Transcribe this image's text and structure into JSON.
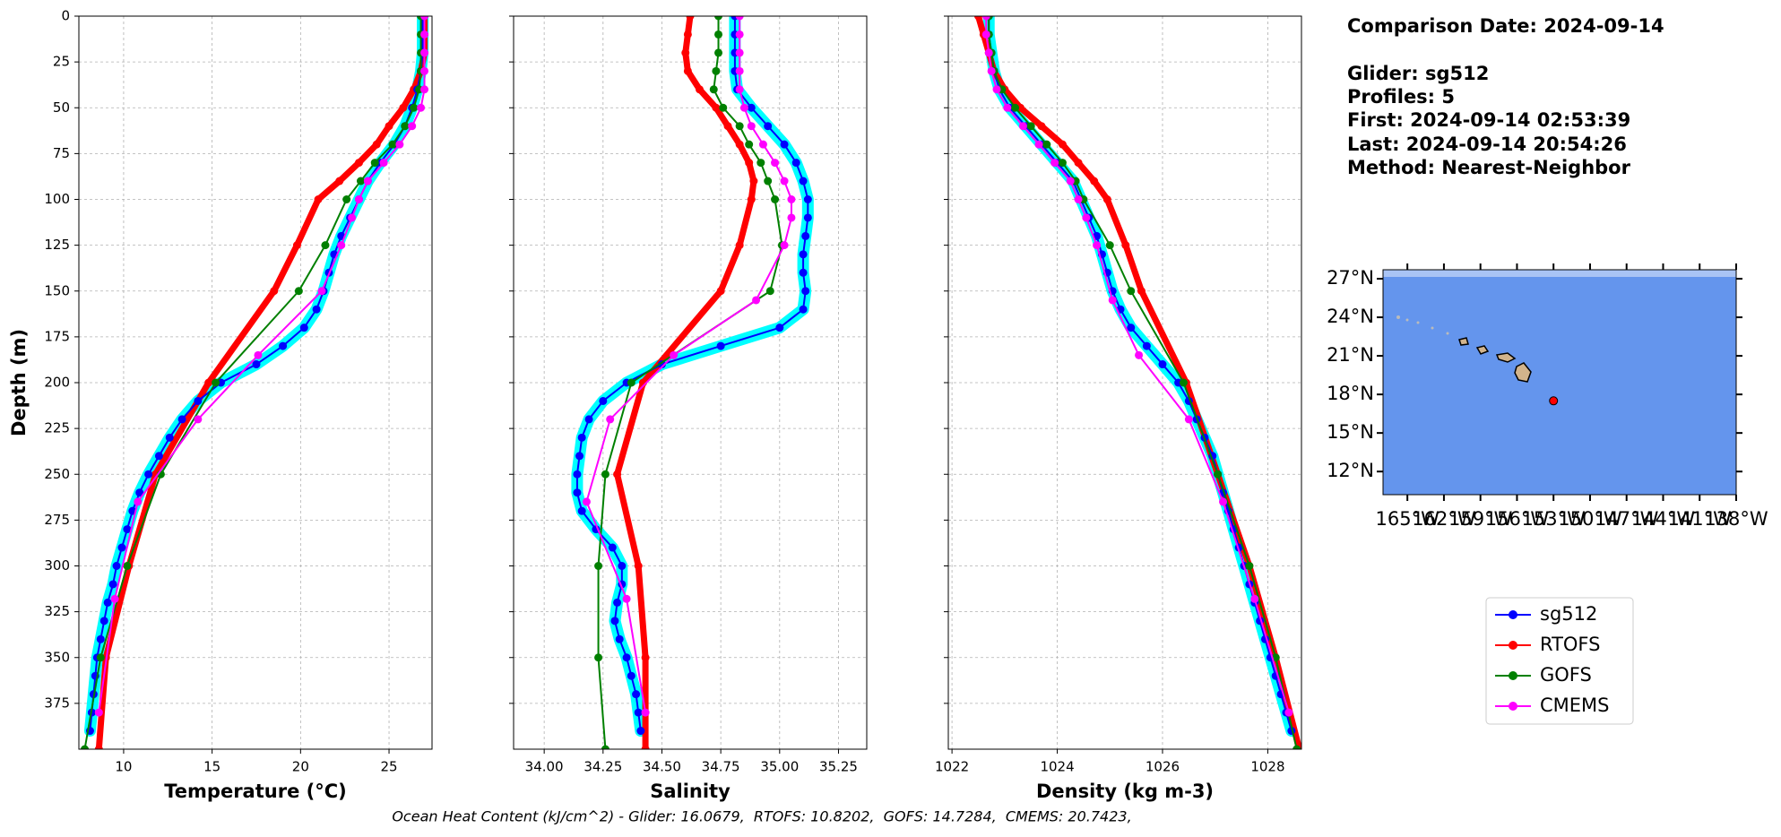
{
  "chart_data": [
    {
      "type": "line",
      "xlabel": "Temperature (°C)",
      "ylabel": "Depth (m)",
      "xlim": [
        7.47,
        27.43
      ],
      "xticks": [
        10,
        15,
        20,
        25
      ],
      "ylim": [
        0,
        400
      ],
      "y_inverted": true,
      "yticks": [
        0,
        25,
        50,
        75,
        100,
        125,
        150,
        175,
        200,
        225,
        250,
        275,
        300,
        325,
        350,
        375
      ],
      "grid": true,
      "series": [
        {
          "name": "sg512",
          "color": "#0000ff",
          "halo_color": "#00ffff",
          "linewidth": 2,
          "depth": [
            0,
            10,
            20,
            30,
            40,
            50,
            60,
            70,
            80,
            90,
            100,
            110,
            120,
            130,
            140,
            150,
            160,
            170,
            180,
            190,
            200,
            210,
            220,
            230,
            240,
            250,
            260,
            270,
            280,
            290,
            300,
            310,
            320,
            330,
            340,
            350,
            360,
            370,
            380,
            390
          ],
          "values": [
            26.9,
            26.9,
            26.9,
            26.8,
            26.6,
            26.3,
            25.9,
            25.3,
            24.5,
            23.8,
            23.3,
            22.8,
            22.3,
            21.9,
            21.6,
            21.3,
            20.9,
            20.2,
            19.0,
            17.5,
            15.5,
            14.2,
            13.3,
            12.6,
            12.0,
            11.4,
            10.9,
            10.5,
            10.2,
            9.9,
            9.6,
            9.4,
            9.1,
            8.9,
            8.7,
            8.5,
            8.4,
            8.3,
            8.2,
            8.1
          ]
        },
        {
          "name": "RTOFS",
          "color": "#ff0000",
          "linewidth": 7,
          "depth": [
            0,
            10,
            20,
            30,
            40,
            50,
            60,
            70,
            80,
            90,
            100,
            125,
            150,
            200,
            250,
            300,
            350,
            400
          ],
          "values": [
            27,
            27,
            27,
            26.8,
            26.4,
            25.8,
            25,
            24.3,
            23.3,
            22.2,
            21.0,
            19.8,
            18.5,
            14.8,
            11.8,
            10.3,
            9.0,
            8.6
          ]
        },
        {
          "name": "GOFS",
          "color": "#008000",
          "linewidth": 2,
          "depth": [
            0,
            10,
            20,
            30,
            40,
            50,
            60,
            70,
            80,
            90,
            100,
            125,
            150,
            200,
            250,
            300,
            350,
            400
          ],
          "values": [
            26.8,
            26.8,
            26.8,
            26.8,
            26.7,
            26.4,
            25.9,
            25.2,
            24.2,
            23.4,
            22.6,
            21.4,
            19.9,
            15.2,
            12.1,
            10.2,
            8.7,
            7.8
          ]
        },
        {
          "name": "CMEMS",
          "color": "#ff00ff",
          "linewidth": 2,
          "depth": [
            0,
            10,
            20,
            30,
            40,
            50,
            60,
            70,
            80,
            90,
            100,
            110,
            125,
            150,
            185,
            220,
            265,
            318,
            380
          ],
          "values": [
            27,
            27,
            27,
            27,
            27,
            26.8,
            26.3,
            25.6,
            24.7,
            23.8,
            23.3,
            22.9,
            22.3,
            21.2,
            17.6,
            14.2,
            10.8,
            9.5,
            8.6
          ]
        }
      ]
    },
    {
      "type": "line",
      "xlabel": "Salinity",
      "xlim": [
        33.87,
        35.37
      ],
      "xticks": [
        {
          "value": 34,
          "label": "34.00"
        },
        34.25,
        {
          "value": 34.5,
          "label": "34.50"
        },
        34.75,
        {
          "value": 35,
          "label": "35.00"
        },
        35.25
      ],
      "ylim": [
        0,
        400
      ],
      "y_inverted": true,
      "grid": true,
      "series": [
        {
          "name": "sg512",
          "color": "#0000ff",
          "halo_color": "#00ffff",
          "linewidth": 2,
          "depth": [
            0,
            10,
            20,
            30,
            40,
            50,
            60,
            70,
            80,
            90,
            100,
            110,
            120,
            130,
            140,
            150,
            160,
            170,
            180,
            190,
            200,
            210,
            220,
            230,
            240,
            250,
            260,
            270,
            280,
            290,
            300,
            310,
            320,
            330,
            340,
            350,
            360,
            370,
            380,
            390
          ],
          "values": [
            34.81,
            34.81,
            34.81,
            34.81,
            34.82,
            34.88,
            34.95,
            35.02,
            35.07,
            35.1,
            35.12,
            35.12,
            35.11,
            35.1,
            35.1,
            35.11,
            35.1,
            35.0,
            34.75,
            34.5,
            34.35,
            34.25,
            34.19,
            34.16,
            34.15,
            34.14,
            34.14,
            34.16,
            34.22,
            34.29,
            34.33,
            34.33,
            34.31,
            34.3,
            34.32,
            34.35,
            34.37,
            34.39,
            34.4,
            34.41
          ]
        },
        {
          "name": "RTOFS",
          "color": "#ff0000",
          "linewidth": 7,
          "depth": [
            0,
            10,
            20,
            30,
            40,
            50,
            60,
            70,
            80,
            90,
            100,
            125,
            150,
            200,
            250,
            300,
            350,
            400
          ],
          "values": [
            34.62,
            34.61,
            34.6,
            34.61,
            34.66,
            34.73,
            34.78,
            34.83,
            34.87,
            34.89,
            34.88,
            34.83,
            34.75,
            34.42,
            34.31,
            34.4,
            34.43,
            34.43
          ]
        },
        {
          "name": "GOFS",
          "color": "#008000",
          "linewidth": 2,
          "depth": [
            0,
            10,
            20,
            30,
            40,
            50,
            60,
            70,
            80,
            90,
            100,
            125,
            150,
            200,
            250,
            300,
            350,
            400
          ],
          "values": [
            34.74,
            34.74,
            34.74,
            34.73,
            34.72,
            34.76,
            34.83,
            34.87,
            34.92,
            34.95,
            34.98,
            35.01,
            34.96,
            34.37,
            34.26,
            34.23,
            34.23,
            34.26
          ]
        },
        {
          "name": "CMEMS",
          "color": "#ff00ff",
          "linewidth": 2,
          "depth": [
            0,
            10,
            20,
            30,
            40,
            50,
            60,
            70,
            80,
            90,
            100,
            110,
            125,
            155,
            185,
            220,
            265,
            318,
            380
          ],
          "values": [
            34.83,
            34.83,
            34.83,
            34.83,
            34.83,
            34.85,
            34.88,
            34.93,
            34.98,
            35.02,
            35.05,
            35.05,
            35.02,
            34.9,
            34.55,
            34.28,
            34.18,
            34.35,
            34.43
          ]
        }
      ]
    },
    {
      "type": "line",
      "xlabel": "Density (kg m-3)",
      "xlim": [
        1021.93,
        1028.64
      ],
      "xticks": [
        1022,
        1024,
        1026,
        1028
      ],
      "ylim": [
        0,
        400
      ],
      "y_inverted": true,
      "grid": true,
      "series": [
        {
          "name": "sg512",
          "color": "#0000ff",
          "halo_color": "#00ffff",
          "linewidth": 2,
          "depth": [
            0,
            10,
            20,
            30,
            40,
            50,
            60,
            70,
            80,
            90,
            100,
            110,
            120,
            130,
            140,
            150,
            160,
            170,
            180,
            190,
            200,
            210,
            220,
            230,
            240,
            250,
            260,
            270,
            280,
            290,
            300,
            310,
            320,
            330,
            340,
            350,
            360,
            370,
            380,
            390
          ],
          "values": [
            1022.7,
            1022.7,
            1022.75,
            1022.8,
            1022.9,
            1023.1,
            1023.4,
            1023.7,
            1024.0,
            1024.3,
            1024.45,
            1024.6,
            1024.75,
            1024.85,
            1024.95,
            1025.05,
            1025.2,
            1025.4,
            1025.7,
            1026.0,
            1026.3,
            1026.5,
            1026.65,
            1026.8,
            1026.95,
            1027.05,
            1027.15,
            1027.25,
            1027.35,
            1027.45,
            1027.55,
            1027.65,
            1027.75,
            1027.85,
            1027.95,
            1028.05,
            1028.15,
            1028.25,
            1028.35,
            1028.45
          ]
        },
        {
          "name": "RTOFS",
          "color": "#ff0000",
          "linewidth": 7,
          "depth": [
            0,
            10,
            20,
            30,
            40,
            50,
            60,
            70,
            80,
            90,
            100,
            125,
            150,
            200,
            250,
            300,
            350,
            400
          ],
          "values": [
            1022.5,
            1022.6,
            1022.7,
            1022.8,
            1023.0,
            1023.3,
            1023.7,
            1024.1,
            1024.4,
            1024.7,
            1024.95,
            1025.3,
            1025.6,
            1026.45,
            1027.05,
            1027.65,
            1028.15,
            1028.6
          ]
        },
        {
          "name": "GOFS",
          "color": "#008000",
          "linewidth": 2,
          "depth": [
            0,
            10,
            20,
            30,
            40,
            50,
            60,
            70,
            80,
            90,
            100,
            125,
            150,
            200,
            250,
            300,
            350,
            400
          ],
          "values": [
            1022.7,
            1022.7,
            1022.75,
            1022.8,
            1022.95,
            1023.2,
            1023.5,
            1023.8,
            1024.1,
            1024.35,
            1024.5,
            1025.0,
            1025.4,
            1026.4,
            1027.05,
            1027.65,
            1028.15,
            1028.55
          ]
        },
        {
          "name": "CMEMS",
          "color": "#ff00ff",
          "linewidth": 2,
          "depth": [
            0,
            10,
            20,
            30,
            40,
            50,
            60,
            70,
            80,
            90,
            100,
            110,
            125,
            155,
            185,
            220,
            265,
            318,
            380
          ],
          "values": [
            1022.65,
            1022.65,
            1022.7,
            1022.75,
            1022.85,
            1023.05,
            1023.35,
            1023.65,
            1023.95,
            1024.25,
            1024.4,
            1024.55,
            1024.75,
            1025.05,
            1025.55,
            1026.5,
            1027.15,
            1027.75,
            1028.4
          ]
        }
      ]
    }
  ],
  "info": [
    "Comparison Date: 2024-09-14",
    "Glider: sg512",
    "Profiles: 5",
    "First: 2024-09-14 02:53:39",
    "Last: 2024-09-14 20:54:26",
    "Method: Nearest-Neighbor"
  ],
  "map": {
    "lonlim": [
      -167,
      -138
    ],
    "latlim": [
      10.2,
      27.7
    ],
    "color": "#6495ed",
    "latticks": [
      {
        "value": 27,
        "label": "27°N"
      },
      {
        "value": 24,
        "label": "24°N"
      },
      {
        "value": 21,
        "label": "21°N"
      },
      {
        "value": 18,
        "label": "18°N"
      },
      {
        "value": 15,
        "label": "15°N"
      },
      {
        "value": 12,
        "label": "12°N"
      }
    ],
    "lonticks": [
      {
        "value": -165,
        "label": "165°W"
      },
      {
        "value": -162,
        "label": "162°W"
      },
      {
        "value": -159,
        "label": "159°W"
      },
      {
        "value": -156,
        "label": "156°W"
      },
      {
        "value": -153,
        "label": "153°W"
      },
      {
        "value": -150,
        "label": "150°W"
      },
      {
        "value": -147,
        "label": "147°W"
      },
      {
        "value": -144,
        "label": "144°W"
      },
      {
        "value": -141,
        "label": "141°W"
      },
      {
        "value": -138,
        "label": "138°W"
      }
    ],
    "point": {
      "lon": -153,
      "lat": 17.5,
      "color": "#ff0000"
    }
  },
  "footer": "Ocean Heat Content (kJ/cm^2) - Glider: 16.0679,  RTOFS: 10.8202,  GOFS: 14.7284,  CMEMS: 20.7423,"
}
